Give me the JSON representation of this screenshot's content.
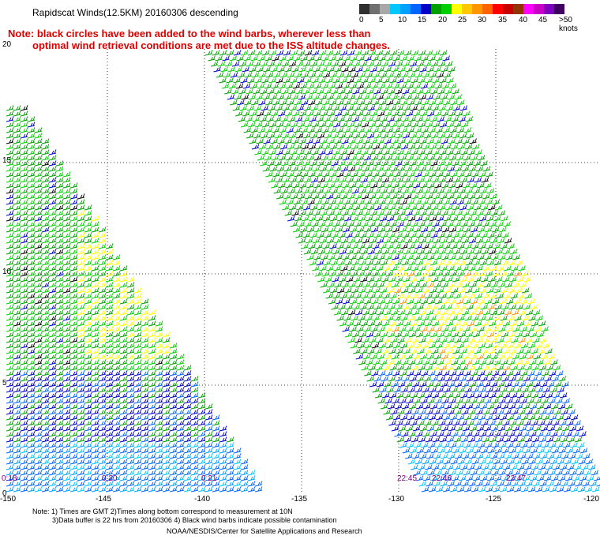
{
  "title": "Rapidscat Winds(12.5KM) 20160306 descending",
  "note_line1": "Note: black circles have been added to the wind barbs, wherever less than",
  "note_line2": "optimal wind retrieval conditions are met due to the ISS altitude changes.",
  "legend": {
    "colors": [
      "#303030",
      "#707070",
      "#a8a8a8",
      "#00c8ff",
      "#00a0ff",
      "#0064ff",
      "#0000c8",
      "#00a000",
      "#00d000",
      "#ffff00",
      "#ffc800",
      "#ff9600",
      "#ff6400",
      "#ff0000",
      "#c80000",
      "#963200",
      "#ff00ff",
      "#c800c8",
      "#8000c0",
      "#400060"
    ],
    "labels": [
      "0",
      "5",
      "10",
      "15",
      "20",
      "25",
      "30",
      "35",
      "40",
      "45",
      ">50 knots"
    ]
  },
  "lat_labels": [
    "20",
    "15",
    "10",
    "5",
    "0"
  ],
  "lon_labels": [
    "-150",
    "-145",
    "-140",
    "-135",
    "-130",
    "-125",
    "-120"
  ],
  "time_labels": [
    "0:18",
    "0:20",
    "0:21",
    "22:45",
    "22:46",
    "22:47"
  ],
  "footnote_line1": "Note: 1) Times are GMT 2)Times along bottom correspond to measurement at 10N",
  "footnote_line2": "3)Data buffer is 22 hrs from 20160306 4) Black wind barbs indicate possible contamination",
  "credit": "NOAA/NESDIS/Center for Satellite Applications and Research"
}
